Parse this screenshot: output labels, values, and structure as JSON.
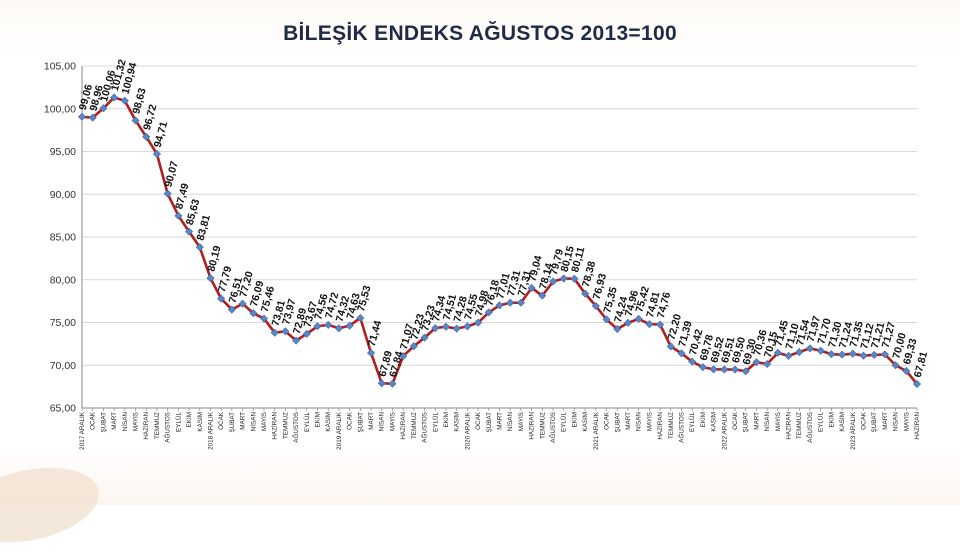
{
  "chart_data": {
    "type": "line",
    "title": "BİLEŞİK ENDEKS AĞUSTOS 2013=100",
    "ylim": [
      65,
      105
    ],
    "yticks": [
      "65,00",
      "70,00",
      "75,00",
      "80,00",
      "85,00",
      "90,00",
      "95,00",
      "100,00",
      "105,00"
    ],
    "grid": true,
    "legend": "none",
    "colors": {
      "line": "#b01e1e",
      "marker": "#5b86c6",
      "grid": "#d9d9d9"
    },
    "categories": [
      "2017 ARALIK",
      "OCAK",
      "ŞUBAT",
      "MART",
      "NİSAN",
      "MAYIS",
      "HAZİRAN",
      "TEMMUZ",
      "AĞUSTOS",
      "EYLÜL",
      "EKİM",
      "KASIM",
      "2018 ARALIK",
      "OCAK",
      "ŞUBAT",
      "MART",
      "NİSAN",
      "MAYIS",
      "HAZİRAN",
      "TEMMUZ",
      "AĞUSTOS",
      "EYLÜL",
      "EKİM",
      "KASIM",
      "2019 ARALIK",
      "OCAK",
      "ŞUBAT",
      "MART",
      "NİSAN",
      "MAYIS",
      "HAZİRAN",
      "TEMMUZ",
      "AĞUSTOS",
      "EYLÜL",
      "EKİM",
      "KASIM",
      "2020 ARALIK",
      "OCAK",
      "ŞUBAT",
      "MART",
      "NİSAN",
      "MAYIS",
      "HAZİRAN",
      "TEMMUZ",
      "AĞUSTOS",
      "EYLÜL",
      "EKİM",
      "KASIM",
      "2021 ARALIK",
      "OCAK",
      "ŞUBAT",
      "MART",
      "NİSAN",
      "MAYIS",
      "HAZİRAN",
      "TEMMUZ",
      "AĞUSTOS",
      "EYLÜL",
      "EKİM",
      "KASIM",
      "2022 ARALIK",
      "OCAK",
      "ŞUBAT",
      "MART",
      "NİSAN",
      "MAYIS",
      "HAZİRAN",
      "TEMMUZ",
      "AĞUSTOS",
      "EYLÜL",
      "EKİM",
      "KASIM",
      "2023 ARALIK",
      "OCAK",
      "ŞUBAT",
      "MART",
      "NİSAN",
      "MAYIS",
      "HAZİRAN"
    ],
    "values": [
      99.06,
      98.96,
      100.06,
      101.32,
      100.94,
      98.63,
      96.72,
      94.71,
      90.07,
      87.49,
      85.63,
      83.81,
      80.19,
      77.79,
      76.51,
      77.2,
      76.09,
      75.46,
      73.81,
      73.97,
      72.89,
      73.67,
      74.56,
      74.72,
      74.32,
      74.63,
      75.53,
      71.44,
      67.89,
      67.84,
      71.07,
      72.23,
      73.23,
      74.34,
      74.51,
      74.28,
      74.55,
      74.98,
      76.18,
      77.01,
      77.31,
      77.31,
      79.04,
      78.14,
      79.79,
      80.15,
      80.11,
      78.38,
      76.93,
      75.35,
      74.24,
      74.96,
      75.42,
      74.81,
      74.76,
      72.2,
      71.39,
      70.42,
      69.78,
      69.52,
      69.51,
      69.5,
      69.3,
      70.36,
      70.15,
      71.45,
      71.1,
      71.54,
      71.97,
      71.7,
      71.3,
      71.24,
      71.35,
      71.12,
      71.21,
      71.27,
      70.0,
      69.33,
      67.81
    ],
    "data_labels": [
      "99,06",
      "98,96",
      "100,06",
      "101,32",
      "100,94",
      "98,63",
      "96,72",
      "94,71",
      "90,07",
      "87,49",
      "85,63",
      "83,81",
      "80,19",
      "77,79",
      "76,51",
      "77,20",
      "76,09",
      "75,46",
      "73,81",
      "73,97",
      "72,89",
      "73,67",
      "74,56",
      "74,72",
      "74,32",
      "74,63",
      "75,53",
      "71,44",
      "67,89",
      "67,84",
      "71,07",
      "72,23",
      "73,23",
      "74,34",
      "74,51",
      "74,28",
      "74,55",
      "74,98",
      "76,18",
      "77,01",
      "77,31",
      "77,31",
      "79,04",
      "78,14",
      "79,79",
      "80,15",
      "80,11",
      "78,38",
      "76,93",
      "75,35",
      "74,24",
      "74,96",
      "75,42",
      "74,81",
      "74,76",
      "72,20",
      "71,39",
      "70,42",
      "69,78",
      "69,52",
      "69,51",
      "69,50",
      "69,30",
      "70,36",
      "70,15",
      "71,45",
      "71,10",
      "71,54",
      "71,97",
      "71,70",
      "71,30",
      "71,24",
      "71,35",
      "71,12",
      "71,21",
      "71,27",
      "70,00",
      "69,33",
      "67,81"
    ]
  }
}
